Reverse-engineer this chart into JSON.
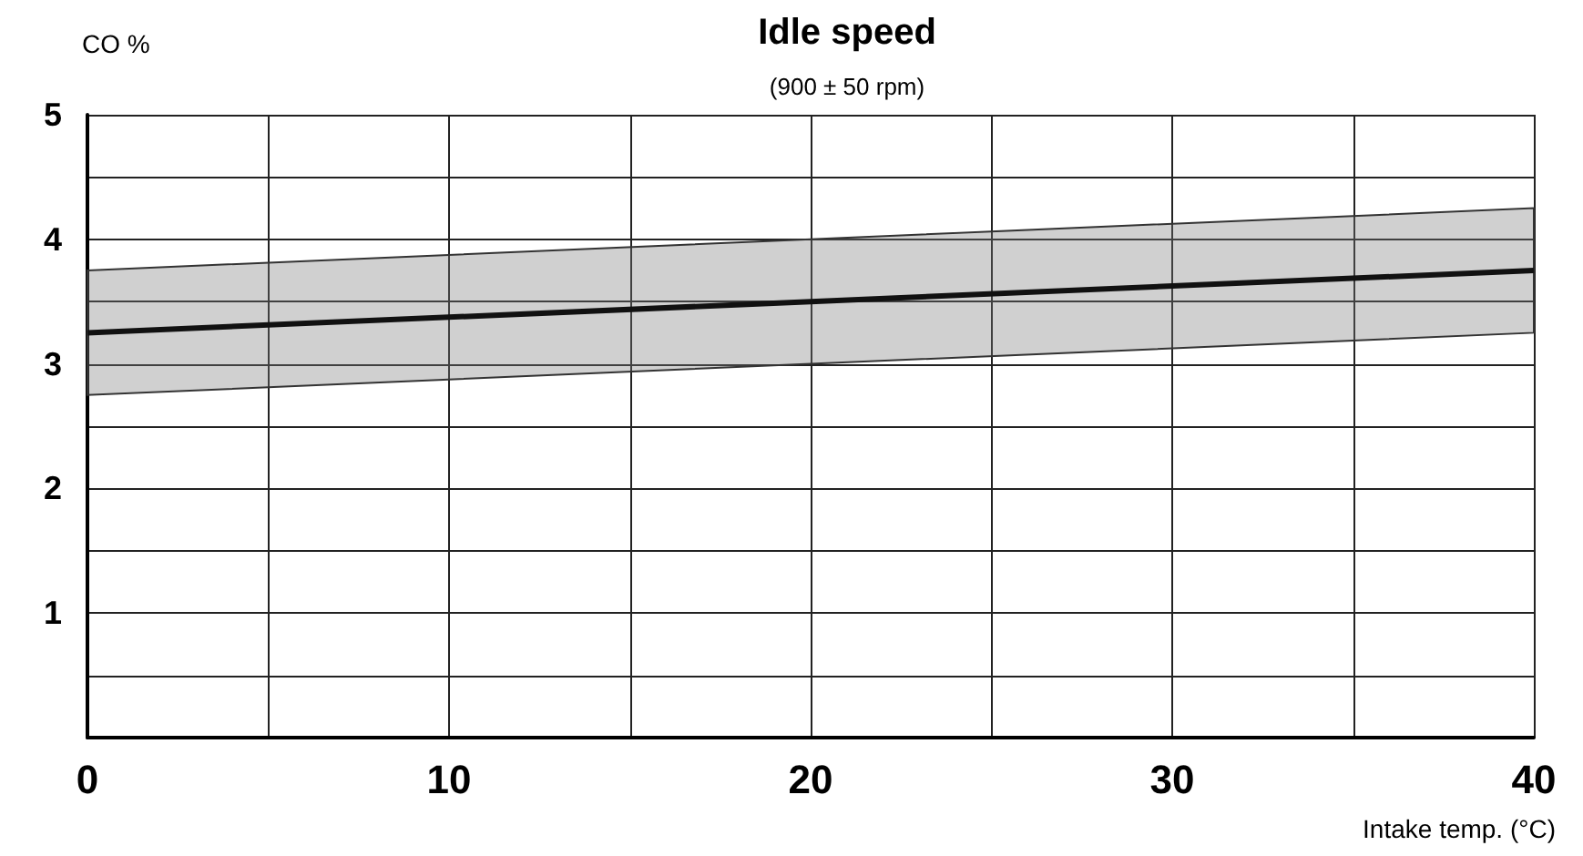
{
  "chart_data": {
    "type": "line",
    "title": "Idle speed",
    "subtitle": "(900 ± 50 rpm)",
    "xlabel": "Intake temp. (°C)",
    "ylabel": "CO %",
    "x": [
      0,
      40
    ],
    "series": [
      {
        "color": "#111111",
        "values": [
          3.25,
          3.75
        ],
        "lower": [
          2.75,
          3.25
        ],
        "upper": [
          3.75,
          4.25
        ]
      }
    ],
    "xlim": [
      0,
      40
    ],
    "ylim": [
      0,
      5
    ],
    "xticks": [
      0,
      {
        "value": 5,
        "label": null
      },
      10,
      {
        "value": 15,
        "label": null
      },
      20,
      {
        "value": 25,
        "label": null
      },
      30,
      {
        "value": 35,
        "label": null
      },
      40
    ],
    "yticks": [
      {
        "value": 0,
        "label": null
      },
      {
        "value": 0.5,
        "label": null
      },
      1,
      {
        "value": 1.5,
        "label": null
      },
      2,
      {
        "value": 2.5,
        "label": null
      },
      3,
      {
        "value": 3.5,
        "label": null
      },
      4,
      {
        "value": 4.5,
        "label": null
      },
      5
    ],
    "grid": true,
    "marker": "none",
    "line_style": "solid"
  }
}
